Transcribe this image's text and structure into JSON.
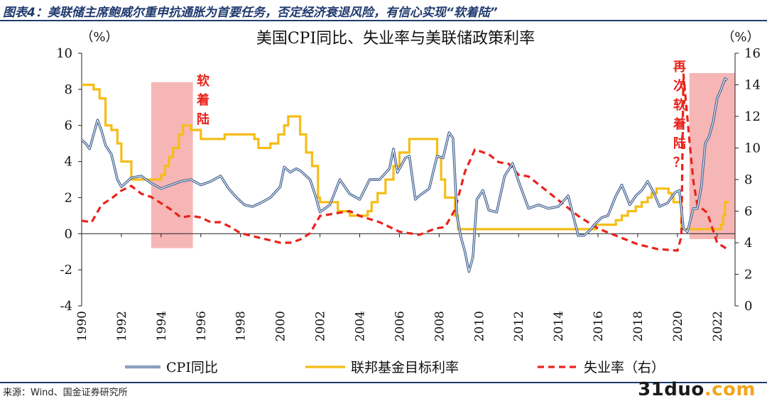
{
  "header": {
    "title": "图表4：美联储主席鲍威尔重申抗通胀为首要任务，否定经济衰退风险，有信心实现“软着陆”"
  },
  "footer": {
    "source": "来源：Wind、国金证券研究所",
    "watermark_main": "31duo",
    "watermark_suffix": ".com"
  },
  "chart_data": {
    "type": "line",
    "title": "美国CPI同比、失业率与美联储政策利率",
    "left_axis": {
      "unit_label": "（%）",
      "ylim": [
        -4,
        10
      ],
      "ticks": [
        -4,
        -2,
        0,
        2,
        4,
        6,
        8,
        10
      ]
    },
    "right_axis": {
      "unit_label": "（%）",
      "ylim": [
        0,
        16
      ],
      "ticks": [
        0,
        2,
        4,
        6,
        8,
        10,
        12,
        14,
        16
      ]
    },
    "x_axis": {
      "xlim": [
        1990,
        2022.9
      ],
      "tick_labels": [
        "1990",
        "1992",
        "1994",
        "1996",
        "1998",
        "2000",
        "2002",
        "2004",
        "2006",
        "2008",
        "2010",
        "2012",
        "2014",
        "2016",
        "2018",
        "2020",
        "2022"
      ]
    },
    "legend_position": "bottom",
    "grid": false,
    "colors": {
      "cpi": "#3a5b8c",
      "fed": "#f6bd16",
      "unemp": "#e8231b",
      "highlight": "#f4a4a4",
      "annotation": "#e8231b"
    },
    "annotations": [
      {
        "text": [
          "软",
          "着",
          "陆"
        ],
        "x_start": 1993.5,
        "x_end": 1995.6
      },
      {
        "text": [
          "再",
          "次",
          "软",
          "着",
          "陆",
          "？"
        ],
        "x_start": 2020.6,
        "x_end": 2022.9
      }
    ],
    "series": [
      {
        "name": "CPI同比",
        "axis": "left",
        "style": "double-line",
        "x": [
          1990.0,
          1990.2,
          1990.4,
          1990.6,
          1990.8,
          1991.0,
          1991.2,
          1991.5,
          1991.8,
          1992.0,
          1992.5,
          1993.0,
          1993.5,
          1994.0,
          1994.5,
          1995.0,
          1995.5,
          1996.0,
          1996.5,
          1997.0,
          1997.4,
          1997.8,
          1998.2,
          1998.6,
          1999.0,
          1999.5,
          2000.0,
          2000.2,
          2000.5,
          2000.8,
          2001.0,
          2001.5,
          2001.8,
          2002.0,
          2002.5,
          2003.0,
          2003.5,
          2004.0,
          2004.5,
          2005.0,
          2005.5,
          2005.7,
          2005.9,
          2006.3,
          2006.5,
          2006.8,
          2007.0,
          2007.5,
          2007.9,
          2008.2,
          2008.5,
          2008.7,
          2008.9,
          2009.1,
          2009.3,
          2009.5,
          2009.7,
          2009.9,
          2010.2,
          2010.5,
          2010.9,
          2011.3,
          2011.7,
          2012.0,
          2012.5,
          2013.0,
          2013.5,
          2014.0,
          2014.5,
          2015.0,
          2015.3,
          2015.6,
          2015.9,
          2016.2,
          2016.5,
          2016.9,
          2017.2,
          2017.6,
          2017.9,
          2018.2,
          2018.5,
          2018.8,
          2019.1,
          2019.5,
          2019.9,
          2020.1,
          2020.3,
          2020.5,
          2020.8,
          2021.0,
          2021.2,
          2021.4,
          2021.6,
          2021.8,
          2022.0,
          2022.2,
          2022.4,
          2022.5
        ],
        "y": [
          5.2,
          5.0,
          4.7,
          5.5,
          6.3,
          5.7,
          4.9,
          4.4,
          3.0,
          2.6,
          3.1,
          3.2,
          2.8,
          2.5,
          2.7,
          2.9,
          3.0,
          2.7,
          2.9,
          3.2,
          2.5,
          2.0,
          1.6,
          1.5,
          1.7,
          2.0,
          2.6,
          3.7,
          3.4,
          3.6,
          3.5,
          3.0,
          2.0,
          1.2,
          1.6,
          3.0,
          2.2,
          1.9,
          3.0,
          3.0,
          3.6,
          4.7,
          3.4,
          4.2,
          4.3,
          1.9,
          2.1,
          2.5,
          4.3,
          4.2,
          5.6,
          5.3,
          1.0,
          -0.2,
          -1.0,
          -2.1,
          -1.3,
          1.9,
          2.4,
          1.3,
          1.2,
          3.2,
          3.9,
          2.9,
          1.4,
          1.6,
          1.4,
          1.5,
          2.1,
          -0.1,
          -0.1,
          0.2,
          0.6,
          0.9,
          1.0,
          2.1,
          2.7,
          1.6,
          2.1,
          2.4,
          2.9,
          2.3,
          1.5,
          1.7,
          2.3,
          2.4,
          0.3,
          0.1,
          1.4,
          1.4,
          2.6,
          5.0,
          5.4,
          6.2,
          7.5,
          8.0,
          8.6,
          8.5
        ]
      },
      {
        "name": "联邦基金目标利率",
        "axis": "left",
        "style": "step",
        "x": [
          1990.0,
          1990.6,
          1990.9,
          1991.2,
          1991.5,
          1991.8,
          1992.0,
          1992.5,
          1993.0,
          1994.0,
          1994.2,
          1994.4,
          1994.6,
          1994.9,
          1995.1,
          1995.5,
          1996.0,
          1996.5,
          1997.2,
          1998.0,
          1998.7,
          1998.9,
          1999.5,
          1999.9,
          2000.2,
          2000.4,
          2001.0,
          2001.3,
          2001.6,
          2001.9,
          2002.0,
          2002.9,
          2003.5,
          2004.4,
          2004.6,
          2004.9,
          2005.3,
          2005.7,
          2006.0,
          2006.5,
          2007.6,
          2007.9,
          2008.1,
          2008.3,
          2008.8,
          2008.95,
          2015.9,
          2016.9,
          2017.2,
          2017.5,
          2017.9,
          2018.2,
          2018.5,
          2018.7,
          2018.95,
          2019.55,
          2019.7,
          2019.8,
          2020.2,
          2022.2,
          2022.3,
          2022.4
        ],
        "y": [
          8.25,
          8.0,
          7.5,
          6.0,
          5.75,
          5.0,
          4.0,
          3.0,
          3.0,
          3.25,
          3.75,
          4.25,
          4.75,
          5.5,
          6.0,
          5.75,
          5.25,
          5.25,
          5.5,
          5.5,
          5.25,
          4.75,
          5.0,
          5.5,
          6.0,
          6.5,
          5.5,
          4.5,
          3.75,
          2.0,
          1.75,
          1.25,
          1.0,
          1.25,
          1.75,
          2.25,
          3.0,
          3.75,
          4.5,
          5.25,
          5.25,
          4.25,
          3.0,
          2.0,
          1.0,
          0.25,
          0.5,
          0.75,
          1.0,
          1.25,
          1.5,
          1.75,
          2.0,
          2.25,
          2.5,
          2.25,
          2.0,
          1.75,
          0.25,
          0.5,
          1.0,
          1.75
        ]
      },
      {
        "name": "失业率（右）",
        "axis": "right",
        "style": "dashed",
        "x": [
          1990.0,
          1990.5,
          1991.0,
          1991.5,
          1992.0,
          1992.5,
          1993.0,
          1993.5,
          1994.0,
          1994.5,
          1995.0,
          1995.5,
          1996.0,
          1996.5,
          1997.0,
          1997.5,
          1998.0,
          1999.0,
          2000.0,
          2000.5,
          2001.0,
          2001.5,
          2002.0,
          2002.5,
          2003.0,
          2003.5,
          2004.0,
          2004.5,
          2005.0,
          2006.0,
          2007.0,
          2007.8,
          2008.3,
          2008.8,
          2009.3,
          2009.8,
          2010.5,
          2011.0,
          2011.5,
          2012.0,
          2012.5,
          2013.0,
          2014.0,
          2015.0,
          2016.0,
          2017.0,
          2018.0,
          2019.0,
          2020.0,
          2020.2,
          2020.3,
          2020.4,
          2020.6,
          2020.8,
          2021.0,
          2021.5,
          2022.0,
          2022.5
        ],
        "y": [
          5.4,
          5.3,
          6.4,
          6.8,
          7.3,
          7.6,
          7.1,
          6.9,
          6.5,
          6.1,
          5.6,
          5.7,
          5.6,
          5.3,
          5.3,
          5.0,
          4.6,
          4.3,
          4.0,
          4.0,
          4.2,
          4.6,
          5.7,
          5.8,
          5.9,
          6.0,
          5.7,
          5.5,
          5.3,
          4.7,
          4.5,
          4.9,
          5.0,
          6.1,
          8.5,
          9.9,
          9.6,
          9.1,
          9.0,
          8.3,
          8.2,
          7.7,
          6.7,
          5.7,
          4.9,
          4.4,
          3.9,
          3.6,
          3.5,
          4.4,
          14.7,
          13.3,
          10.5,
          7.9,
          6.4,
          5.9,
          4.0,
          3.6
        ]
      }
    ]
  }
}
